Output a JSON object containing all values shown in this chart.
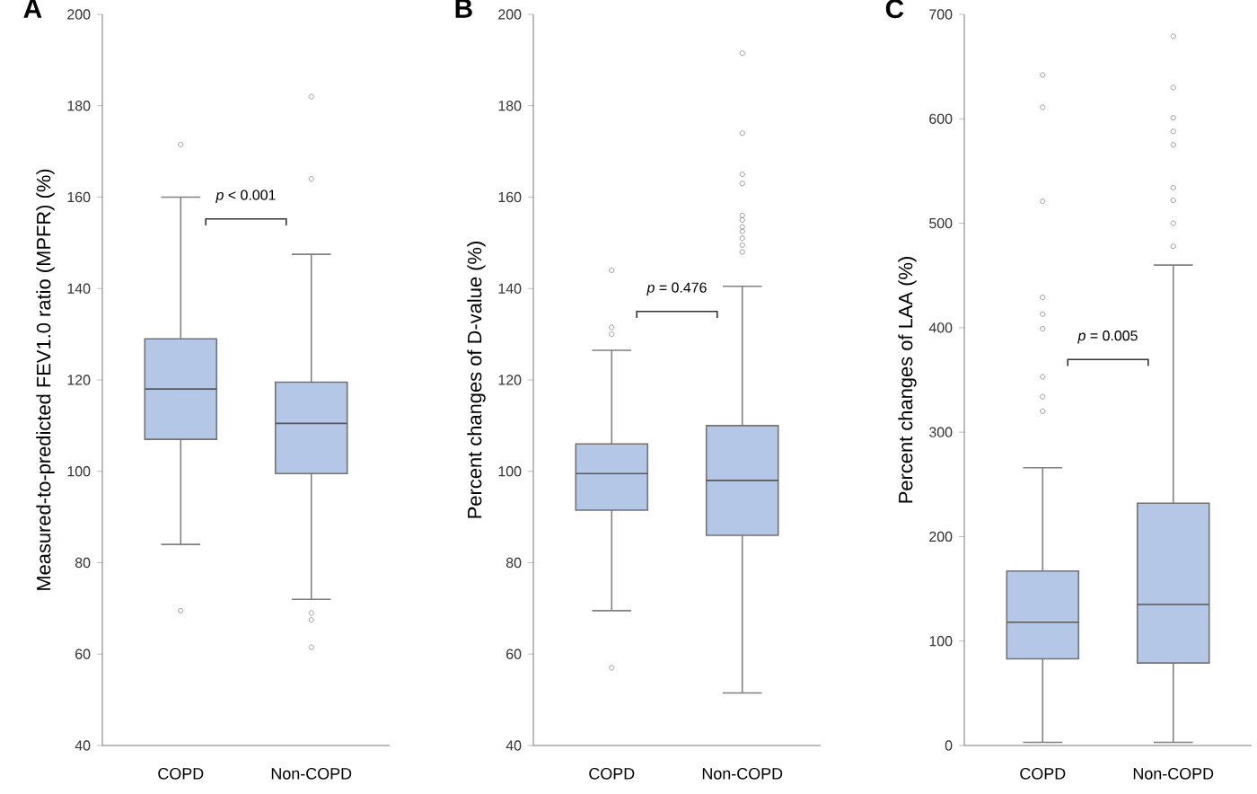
{
  "chart_data": [
    {
      "type": "box",
      "title": "A",
      "ylabel": "Measured-to-predicted FEV1.0 ratio (MPFR) (%)",
      "categories": [
        "COPD",
        "Non-COPD"
      ],
      "ylim": [
        40,
        200
      ],
      "yticks": [
        40,
        60,
        80,
        100,
        120,
        140,
        160,
        180,
        200
      ],
      "series": [
        {
          "color": "#b4c7e7",
          "boxes": [
            {
              "low": 84,
              "q1": 107,
              "median": 118,
              "q3": 129,
              "high": 160,
              "outliers": [
                171.5,
                69.5
              ]
            },
            {
              "low": 72,
              "q1": 99.5,
              "median": 110.5,
              "q3": 119.5,
              "high": 147.5,
              "outliers": [
                182,
                164,
                69,
                67.5,
                61.5
              ]
            }
          ]
        }
      ],
      "annotations": [
        "*p* < 0.001"
      ]
    },
    {
      "type": "box",
      "title": "B",
      "ylabel": "Percent changes of D-value (%)",
      "categories": [
        "COPD",
        "Non-COPD"
      ],
      "ylim": [
        40,
        200
      ],
      "yticks": [
        40,
        60,
        80,
        100,
        120,
        140,
        160,
        180,
        200
      ],
      "series": [
        {
          "color": "#b4c7e7",
          "boxes": [
            {
              "low": 69.5,
              "q1": 91.5,
              "median": 99.5,
              "q3": 106,
              "high": 126.5,
              "outliers": [
                144,
                131.5,
                130,
                57
              ]
            },
            {
              "low": 51.5,
              "q1": 86,
              "median": 98,
              "q3": 110,
              "high": 140.5,
              "outliers": [
                191.5,
                174,
                165,
                163,
                156,
                155,
                153.5,
                152.5,
                151,
                149.5,
                148
              ]
            }
          ]
        }
      ],
      "annotations": [
        "*p* = 0.476"
      ]
    },
    {
      "type": "box",
      "title": "C",
      "ylabel": "Percent changes of LAA (%)",
      "categories": [
        "COPD",
        "Non-COPD"
      ],
      "ylim": [
        0,
        700
      ],
      "yticks": [
        0,
        100,
        200,
        300,
        400,
        500,
        600,
        700
      ],
      "series": [
        {
          "color": "#b4c7e7",
          "boxes": [
            {
              "low": 3,
              "q1": 83,
              "median": 118,
              "q3": 167,
              "high": 266,
              "outliers": [
                642,
                611,
                521,
                429,
                413,
                399,
                353,
                334,
                320
              ]
            },
            {
              "low": 3,
              "q1": 79,
              "median": 135,
              "q3": 232,
              "high": 460,
              "outliers": [
                679,
                630,
                601,
                588,
                575,
                534,
                522,
                500,
                478
              ]
            }
          ]
        }
      ],
      "annotations": [
        "*p* = 0.005"
      ]
    }
  ]
}
